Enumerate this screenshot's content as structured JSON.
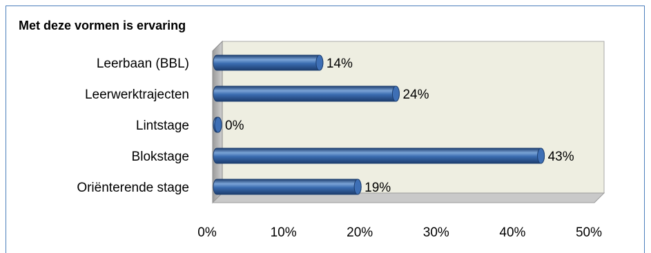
{
  "chart_data": {
    "type": "bar",
    "orientation": "horizontal",
    "style": "3d-cylinder",
    "title": "Met deze vormen is ervaring",
    "categories": [
      "Leerbaan (BBL)",
      "Leerwerktrajecten",
      "Lintstage",
      "Blokstage",
      "Oriënterende stage"
    ],
    "values": [
      14,
      24,
      0,
      43,
      19
    ],
    "value_labels": [
      "14%",
      "24%",
      "0%",
      "43%",
      "19%"
    ],
    "xlim": [
      0,
      50
    ],
    "x_ticks": [
      "0%",
      "10%",
      "20%",
      "30%",
      "40%",
      "50%"
    ],
    "xlabel": "",
    "ylabel": "",
    "grid": false,
    "legend": "none",
    "colors": {
      "bar": "#2e5c9e",
      "bar_highlight": "#7aa3d6",
      "bar_dark": "#1c3d6e",
      "bar_cap": "#3e6fb5",
      "plot_back": "#eeeee1",
      "plot_wall": "#bdbdbd",
      "plot_floor": "#c9c9c9",
      "frame_border": "#4a7ebb"
    }
  }
}
